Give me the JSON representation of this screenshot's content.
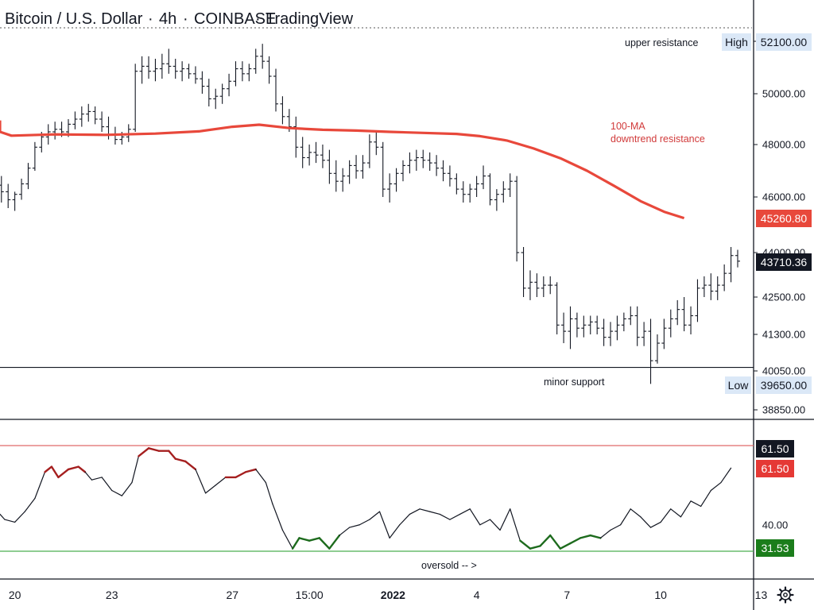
{
  "header": {
    "title": "Bitcoin / U.S. Dollar",
    "interval": "4h",
    "exchange": "COINBASE",
    "brand": "TradingView"
  },
  "settings_icon": "gear-icon",
  "colors": {
    "ma": "#e8483b",
    "candle": "#131722",
    "rsi_line": "#131722",
    "rsi_overbought": "#a51f1f",
    "rsi_oversold": "#1d6b1d",
    "upper_level_line": "#e06a6a",
    "lower_level_line": "#4caf50",
    "support_line": "#131722",
    "tag_dark": "#131722",
    "tag_red": "#e53935",
    "tag_green": "#1b7d1b",
    "tag_blue_bg": "#dbe8f7",
    "ma_tag": "#e8483b"
  },
  "chart_data": [
    {
      "type": "candlestick",
      "title": "Bitcoin / U.S. Dollar 4h COINBASE",
      "y_ticks": [
        "52100.00",
        "50000.00",
        "48000.00",
        "46000.00",
        "44000.00",
        "42500.00",
        "41300.00",
        "40050.00",
        "38850.00"
      ],
      "x_ticks": [
        "20",
        "23",
        "27",
        "15:00",
        "2022",
        "4",
        "7",
        "10",
        "13"
      ],
      "ylim": [
        38500,
        53000
      ],
      "series": [
        {
          "name": "100-MA",
          "values": [
            [
              -1.2,
              48950
            ],
            [
              -0.5,
              48500
            ],
            [
              0.2,
              48350
            ],
            [
              1.5,
              48400
            ],
            [
              3.0,
              48380
            ],
            [
              4.5,
              48430
            ],
            [
              5.8,
              48520
            ],
            [
              6.8,
              48700
            ],
            [
              7.6,
              48780
            ],
            [
              8.5,
              48650
            ],
            [
              9.5,
              48580
            ],
            [
              10.5,
              48550
            ],
            [
              11.5,
              48500
            ],
            [
              12.5,
              48460
            ],
            [
              13.5,
              48420
            ],
            [
              14.2,
              48330
            ],
            [
              15.0,
              48160
            ],
            [
              15.8,
              47850
            ],
            [
              16.6,
              47480
            ],
            [
              17.4,
              47000
            ],
            [
              18.2,
              46430
            ],
            [
              19.0,
              45850
            ],
            [
              19.7,
              45470
            ],
            [
              20.3,
              45240
            ]
          ]
        }
      ],
      "annotations": [
        {
          "text": "upper resistance",
          "value": 52100
        },
        {
          "text": "100-MA",
          "value": 47750
        },
        {
          "text": "downtrend resistance",
          "value": 47750
        },
        {
          "text": "minor support",
          "value": 40170
        }
      ],
      "reference_lines": [
        {
          "name": "minor support",
          "value": 40170
        }
      ],
      "price_tags": {
        "high": {
          "label": "High",
          "value": "52100.00"
        },
        "ma": {
          "value": "45260.80"
        },
        "last": {
          "value": "43710.36"
        },
        "low": {
          "label": "Low",
          "value": "39650.00"
        }
      },
      "candles": [
        [
          -0.5,
          46800,
          47200,
          46300,
          46700
        ],
        [
          -0.3,
          46700,
          47000,
          46100,
          46450
        ],
        [
          -0.1,
          46450,
          46800,
          45800,
          46200
        ],
        [
          0.1,
          46200,
          46500,
          45600,
          45900
        ],
        [
          0.3,
          45900,
          46200,
          45500,
          46100
        ],
        [
          0.5,
          46100,
          46700,
          45900,
          46500
        ],
        [
          0.7,
          46500,
          47300,
          46300,
          47100
        ],
        [
          0.9,
          47100,
          48100,
          47000,
          47900
        ],
        [
          1.1,
          47900,
          48500,
          47700,
          48300
        ],
        [
          1.3,
          48300,
          48800,
          48000,
          48500
        ],
        [
          1.5,
          48500,
          48900,
          48200,
          48600
        ],
        [
          1.7,
          48600,
          48900,
          48300,
          48500
        ],
        [
          1.9,
          48500,
          49000,
          48300,
          48800
        ],
        [
          2.1,
          48800,
          49300,
          48600,
          49000
        ],
        [
          2.3,
          49000,
          49500,
          48700,
          49200
        ],
        [
          2.5,
          49200,
          49600,
          48900,
          49300
        ],
        [
          2.7,
          49300,
          49500,
          48800,
          49000
        ],
        [
          2.9,
          49000,
          49300,
          48500,
          48700
        ],
        [
          3.1,
          48700,
          49100,
          48200,
          48400
        ],
        [
          3.3,
          48400,
          48700,
          48000,
          48200
        ],
        [
          3.5,
          48200,
          48500,
          48000,
          48300
        ],
        [
          3.7,
          48300,
          48800,
          48100,
          48600
        ],
        [
          3.9,
          48600,
          51200,
          48500,
          50900
        ],
        [
          4.1,
          50900,
          51500,
          50400,
          51100
        ],
        [
          4.3,
          51100,
          51500,
          50600,
          50900
        ],
        [
          4.5,
          50900,
          51400,
          50500,
          51000
        ],
        [
          4.7,
          51000,
          51600,
          50600,
          51200
        ],
        [
          4.9,
          51200,
          51800,
          50800,
          51100
        ],
        [
          5.1,
          51100,
          51400,
          50600,
          50900
        ],
        [
          5.3,
          50900,
          51300,
          50500,
          51000
        ],
        [
          5.5,
          51000,
          51200,
          50600,
          50800
        ],
        [
          5.7,
          50800,
          51100,
          50400,
          50600
        ],
        [
          5.9,
          50600,
          50900,
          50000,
          50300
        ],
        [
          6.1,
          50300,
          50600,
          49500,
          49800
        ],
        [
          6.3,
          49800,
          50200,
          49400,
          49900
        ],
        [
          6.5,
          49900,
          50400,
          49600,
          50200
        ],
        [
          6.7,
          50200,
          50800,
          49900,
          50500
        ],
        [
          6.9,
          50500,
          51300,
          50300,
          51000
        ],
        [
          7.1,
          51000,
          51300,
          50500,
          50800
        ],
        [
          7.3,
          50800,
          51200,
          50500,
          51000
        ],
        [
          7.5,
          51000,
          51800,
          50800,
          51500
        ],
        [
          7.7,
          51500,
          52000,
          51000,
          51300
        ],
        [
          7.9,
          51300,
          51500,
          50400,
          50700
        ],
        [
          8.1,
          50700,
          51000,
          49300,
          49600
        ],
        [
          8.3,
          49600,
          49900,
          48800,
          49100
        ],
        [
          8.5,
          49100,
          49400,
          48500,
          48700
        ],
        [
          8.7,
          48700,
          49100,
          47500,
          47900
        ],
        [
          8.9,
          47900,
          48300,
          47100,
          47500
        ],
        [
          9.1,
          47500,
          48000,
          47200,
          47700
        ],
        [
          9.3,
          47700,
          48100,
          47300,
          47600
        ],
        [
          9.5,
          47600,
          48000,
          47100,
          47400
        ],
        [
          9.7,
          47400,
          47800,
          46500,
          46900
        ],
        [
          9.9,
          46900,
          47400,
          46200,
          46600
        ],
        [
          10.1,
          46600,
          47100,
          46200,
          46800
        ],
        [
          10.3,
          46800,
          47400,
          46500,
          47200
        ],
        [
          10.5,
          47200,
          47600,
          46700,
          47000
        ],
        [
          10.7,
          47000,
          47600,
          46700,
          47300
        ],
        [
          10.9,
          47300,
          48400,
          47100,
          48100
        ],
        [
          11.1,
          48100,
          48500,
          47600,
          47900
        ],
        [
          11.3,
          47900,
          48100,
          46000,
          46300
        ],
        [
          11.5,
          46300,
          46900,
          45800,
          46500
        ],
        [
          11.7,
          46500,
          47100,
          46200,
          46900
        ],
        [
          11.9,
          46900,
          47400,
          46600,
          47200
        ],
        [
          12.1,
          47200,
          47700,
          46900,
          47400
        ],
        [
          12.3,
          47400,
          47800,
          47000,
          47500
        ],
        [
          12.5,
          47500,
          47800,
          47100,
          47400
        ],
        [
          12.7,
          47400,
          47700,
          47000,
          47300
        ],
        [
          12.9,
          47300,
          47600,
          46800,
          47100
        ],
        [
          13.1,
          47100,
          47400,
          46600,
          46900
        ],
        [
          13.3,
          46900,
          47200,
          46400,
          46700
        ],
        [
          13.5,
          46700,
          46900,
          46100,
          46300
        ],
        [
          13.7,
          46300,
          46600,
          45800,
          46100
        ],
        [
          13.9,
          46100,
          46500,
          45800,
          46300
        ],
        [
          14.1,
          46300,
          46800,
          46000,
          46500
        ],
        [
          14.3,
          46500,
          47200,
          46300,
          46800
        ],
        [
          14.5,
          46800,
          46900,
          45700,
          45900
        ],
        [
          14.7,
          45900,
          46300,
          45500,
          46100
        ],
        [
          14.9,
          46100,
          46600,
          45800,
          46300
        ],
        [
          15.1,
          46300,
          46900,
          46000,
          46600
        ],
        [
          15.3,
          46600,
          46800,
          43700,
          44000
        ],
        [
          15.5,
          44000,
          44200,
          42500,
          42800
        ],
        [
          15.7,
          42800,
          43400,
          42400,
          43000
        ],
        [
          15.9,
          43000,
          43300,
          42500,
          42800
        ],
        [
          16.1,
          42800,
          43200,
          42500,
          42900
        ],
        [
          16.3,
          42900,
          43200,
          42600,
          42900
        ],
        [
          16.5,
          42900,
          43000,
          41300,
          41600
        ],
        [
          16.7,
          41600,
          42000,
          41000,
          41400
        ],
        [
          16.9,
          41400,
          42200,
          40800,
          41800
        ],
        [
          17.1,
          41800,
          42000,
          41200,
          41500
        ],
        [
          17.3,
          41500,
          41900,
          41200,
          41600
        ],
        [
          17.5,
          41600,
          41900,
          41300,
          41700
        ],
        [
          17.7,
          41700,
          41900,
          41300,
          41500
        ],
        [
          17.9,
          41500,
          41800,
          40900,
          41200
        ],
        [
          18.1,
          41200,
          41700,
          40900,
          41400
        ],
        [
          18.3,
          41400,
          41900,
          41100,
          41600
        ],
        [
          18.5,
          41600,
          42000,
          41400,
          41800
        ],
        [
          18.7,
          41800,
          42200,
          41600,
          41900
        ],
        [
          18.9,
          41900,
          42200,
          40900,
          41200
        ],
        [
          19.1,
          41200,
          41700,
          40900,
          41400
        ],
        [
          19.3,
          41400,
          41800,
          39650,
          40400
        ],
        [
          19.5,
          40400,
          41300,
          40300,
          41000
        ],
        [
          19.7,
          41000,
          41800,
          40800,
          41500
        ],
        [
          19.9,
          41500,
          42100,
          41200,
          41800
        ],
        [
          20.1,
          41800,
          42400,
          41600,
          42100
        ],
        [
          20.3,
          42100,
          42500,
          41400,
          41600
        ],
        [
          20.5,
          41600,
          42200,
          41300,
          41900
        ],
        [
          20.7,
          41900,
          43100,
          41700,
          42800
        ],
        [
          20.9,
          42800,
          43200,
          42500,
          42900
        ],
        [
          21.1,
          42900,
          43300,
          42400,
          42700
        ],
        [
          21.3,
          42700,
          43200,
          42400,
          42900
        ],
        [
          21.5,
          42900,
          43600,
          42700,
          43300
        ],
        [
          21.7,
          43300,
          44200,
          43000,
          43900
        ],
        [
          21.9,
          43900,
          44100,
          43500,
          43710
        ]
      ]
    },
    {
      "type": "line",
      "title": "",
      "y_ticks": [
        "40.00"
      ],
      "levels": [
        {
          "name": "upper",
          "value": 70
        },
        {
          "name": "lower",
          "value": 30
        }
      ],
      "ylim": [
        27,
        72
      ],
      "annotations": [
        {
          "text": "oversold -- >",
          "value": 27.5
        }
      ],
      "value_tags": {
        "upper": "61.50",
        "current": "61.50",
        "lower": "31.53"
      },
      "values": [
        [
          -0.5,
          44
        ],
        [
          -0.2,
          44
        ],
        [
          0.0,
          42
        ],
        [
          0.3,
          41
        ],
        [
          0.6,
          45
        ],
        [
          0.9,
          50
        ],
        [
          1.2,
          60
        ],
        [
          1.4,
          62
        ],
        [
          1.6,
          58
        ],
        [
          1.9,
          61
        ],
        [
          2.2,
          62
        ],
        [
          2.4,
          60
        ],
        [
          2.6,
          57
        ],
        [
          2.9,
          58
        ],
        [
          3.2,
          53
        ],
        [
          3.5,
          51
        ],
        [
          3.8,
          56
        ],
        [
          4.0,
          66
        ],
        [
          4.3,
          69
        ],
        [
          4.6,
          68
        ],
        [
          4.9,
          68
        ],
        [
          5.1,
          65
        ],
        [
          5.4,
          64
        ],
        [
          5.7,
          61
        ],
        [
          6.0,
          52
        ],
        [
          6.3,
          55
        ],
        [
          6.6,
          58
        ],
        [
          6.9,
          58
        ],
        [
          7.2,
          60
        ],
        [
          7.5,
          61
        ],
        [
          7.8,
          56
        ],
        [
          8.0,
          48
        ],
        [
          8.3,
          38
        ],
        [
          8.6,
          31
        ],
        [
          8.8,
          35
        ],
        [
          9.1,
          34
        ],
        [
          9.4,
          35
        ],
        [
          9.7,
          31
        ],
        [
          10.0,
          36
        ],
        [
          10.3,
          39
        ],
        [
          10.6,
          40
        ],
        [
          10.9,
          42
        ],
        [
          11.2,
          45
        ],
        [
          11.5,
          35
        ],
        [
          11.8,
          40
        ],
        [
          12.1,
          44
        ],
        [
          12.4,
          46
        ],
        [
          12.7,
          45
        ],
        [
          13.0,
          44
        ],
        [
          13.3,
          42
        ],
        [
          13.6,
          44
        ],
        [
          13.9,
          46
        ],
        [
          14.2,
          40
        ],
        [
          14.5,
          42
        ],
        [
          14.8,
          38
        ],
        [
          15.1,
          46
        ],
        [
          15.4,
          34
        ],
        [
          15.7,
          31
        ],
        [
          16.0,
          32
        ],
        [
          16.3,
          36
        ],
        [
          16.6,
          31
        ],
        [
          16.9,
          33
        ],
        [
          17.2,
          35
        ],
        [
          17.5,
          36
        ],
        [
          17.8,
          35
        ],
        [
          18.1,
          38
        ],
        [
          18.4,
          40
        ],
        [
          18.7,
          46
        ],
        [
          19.0,
          43
        ],
        [
          19.3,
          39
        ],
        [
          19.6,
          41
        ],
        [
          19.9,
          46
        ],
        [
          20.2,
          43
        ],
        [
          20.5,
          49
        ],
        [
          20.8,
          47
        ],
        [
          21.1,
          53
        ],
        [
          21.4,
          56
        ],
        [
          21.7,
          61.5
        ]
      ]
    }
  ]
}
